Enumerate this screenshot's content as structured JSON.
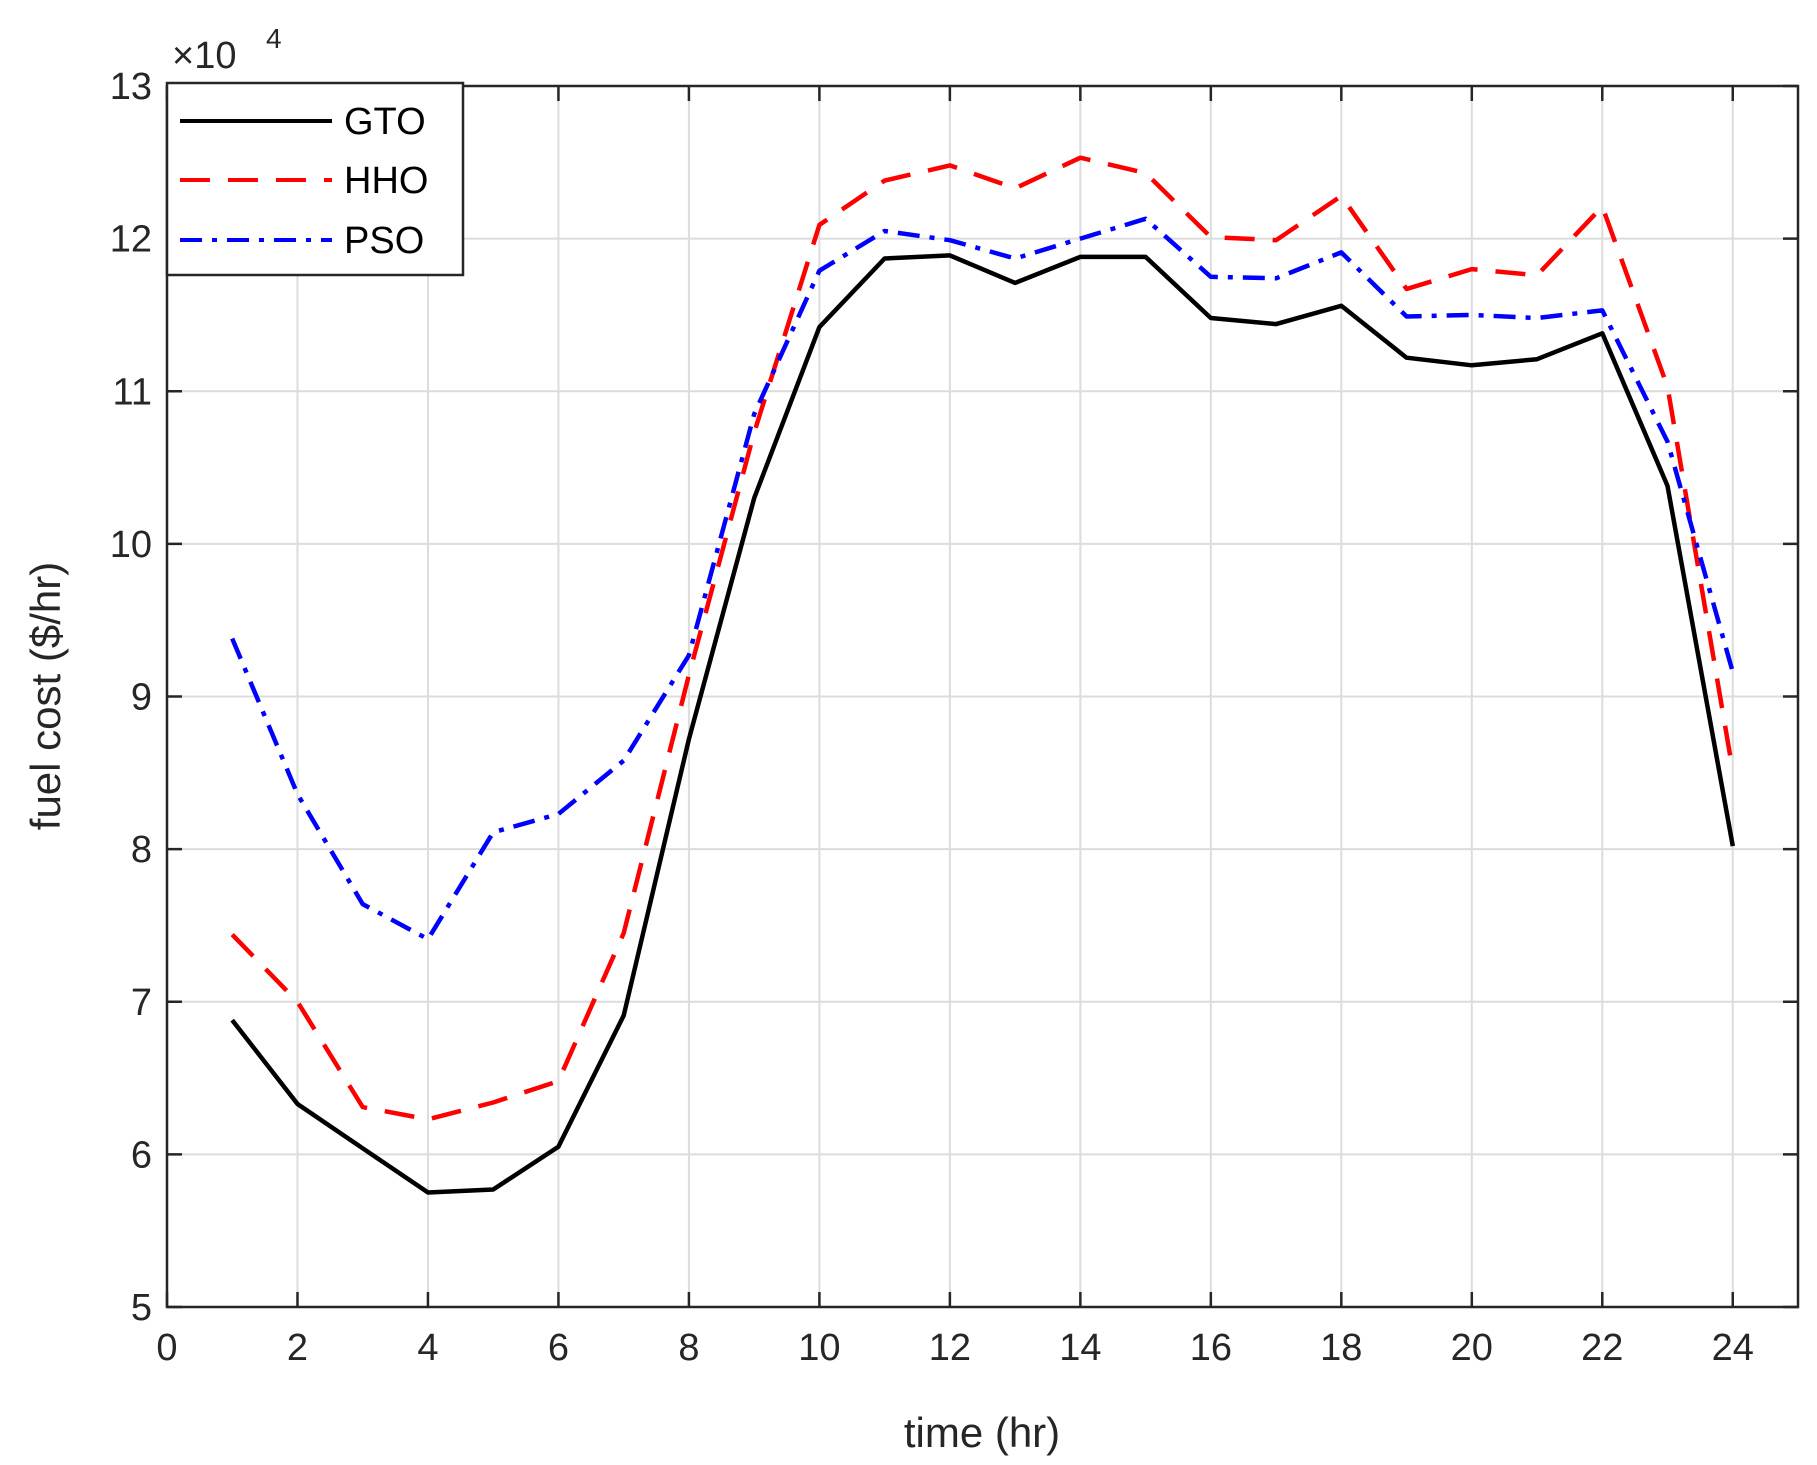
{
  "chart_data": {
    "type": "line",
    "xlabel": "time (hr)",
    "ylabel": "fuel cost ($/hr)",
    "y_exponent": {
      "base": "×10",
      "power": "4"
    },
    "xlim": [
      0,
      25
    ],
    "ylim": [
      5,
      13
    ],
    "xticks": [
      0,
      2,
      4,
      6,
      8,
      10,
      12,
      14,
      16,
      18,
      20,
      22,
      24
    ],
    "yticks": [
      5,
      6,
      7,
      8,
      9,
      10,
      11,
      12,
      13
    ],
    "grid": true,
    "legend_position": "top-left",
    "x": [
      1,
      2,
      3,
      4,
      5,
      6,
      7,
      8,
      9,
      10,
      11,
      12,
      13,
      14,
      15,
      16,
      17,
      18,
      19,
      20,
      21,
      22,
      23,
      24
    ],
    "series": [
      {
        "name": "GTO",
        "color": "#000000",
        "style": "solid",
        "values": [
          6.88,
          6.33,
          6.04,
          5.75,
          5.77,
          6.05,
          6.91,
          8.72,
          10.3,
          11.42,
          11.87,
          11.89,
          11.71,
          11.88,
          11.88,
          11.48,
          11.44,
          11.56,
          11.22,
          11.17,
          11.21,
          11.38,
          10.38,
          8.02
        ]
      },
      {
        "name": "HHO",
        "color": "#ff0000",
        "style": "dashed",
        "values": [
          7.44,
          7.0,
          6.31,
          6.23,
          6.34,
          6.48,
          7.45,
          9.14,
          10.73,
          12.09,
          12.38,
          12.48,
          12.33,
          12.53,
          12.43,
          12.01,
          11.99,
          12.28,
          11.67,
          11.8,
          11.76,
          12.21,
          11.03,
          8.51
        ]
      },
      {
        "name": "PSO",
        "color": "#0000ff",
        "style": "dashdot",
        "values": [
          9.38,
          8.36,
          7.64,
          7.41,
          8.11,
          8.23,
          8.58,
          9.27,
          10.85,
          11.79,
          12.05,
          11.99,
          11.87,
          12.0,
          12.13,
          11.75,
          11.74,
          11.91,
          11.49,
          11.5,
          11.48,
          11.53,
          10.67,
          9.16
        ]
      }
    ]
  }
}
